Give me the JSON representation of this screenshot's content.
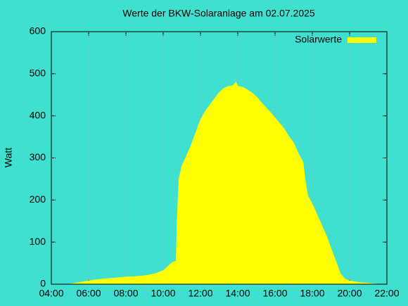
{
  "chart_data": {
    "type": "area",
    "title": "Werte der BKW-Solaranlage am 02.07.2025",
    "y_label": "Watt",
    "background": "#40e0d0",
    "grid": true,
    "legend": "top-right",
    "series": [
      {
        "name": "Solarwerte",
        "color": "#ffff00",
        "x": [
          5.0,
          5.5,
          6.0,
          6.5,
          7.0,
          7.5,
          8.0,
          8.5,
          9.0,
          9.5,
          10.0,
          10.25,
          10.5,
          10.7,
          10.75,
          10.85,
          11.0,
          11.25,
          11.5,
          11.75,
          12.0,
          12.25,
          12.5,
          12.75,
          13.0,
          13.25,
          13.5,
          13.75,
          13.9,
          14.0,
          14.25,
          14.5,
          14.75,
          15.0,
          15.25,
          15.5,
          15.75,
          16.0,
          16.25,
          16.5,
          16.75,
          17.0,
          17.25,
          17.5,
          17.6,
          17.75,
          18.0,
          18.25,
          18.5,
          18.75,
          19.0,
          19.25,
          19.5,
          19.75,
          20.0,
          20.5,
          21.0,
          21.5
        ],
        "values": [
          0,
          4,
          8,
          11,
          13,
          15,
          17,
          18,
          20,
          24,
          32,
          42,
          52,
          55,
          150,
          250,
          280,
          305,
          330,
          360,
          390,
          410,
          425,
          440,
          455,
          465,
          470,
          472,
          480,
          470,
          468,
          462,
          455,
          445,
          432,
          420,
          408,
          395,
          382,
          368,
          350,
          335,
          310,
          290,
          250,
          210,
          190,
          165,
          140,
          115,
          85,
          55,
          25,
          12,
          8,
          4,
          2,
          0
        ]
      }
    ],
    "xlim": [
      4,
      22
    ],
    "xticks": [
      {
        "value": 4,
        "label": "04:00"
      },
      {
        "value": 6,
        "label": "06:00"
      },
      {
        "value": 8,
        "label": "08:00"
      },
      {
        "value": 10,
        "label": "10:00"
      },
      {
        "value": 12,
        "label": "12:00"
      },
      {
        "value": 14,
        "label": "14:00"
      },
      {
        "value": 16,
        "label": "16:00"
      },
      {
        "value": 18,
        "label": "18:00"
      },
      {
        "value": 20,
        "label": "20:00"
      },
      {
        "value": 22,
        "label": "22:00"
      }
    ],
    "ylim": [
      0,
      600
    ],
    "yticks": [
      0,
      100,
      200,
      300,
      400,
      500,
      600
    ]
  }
}
